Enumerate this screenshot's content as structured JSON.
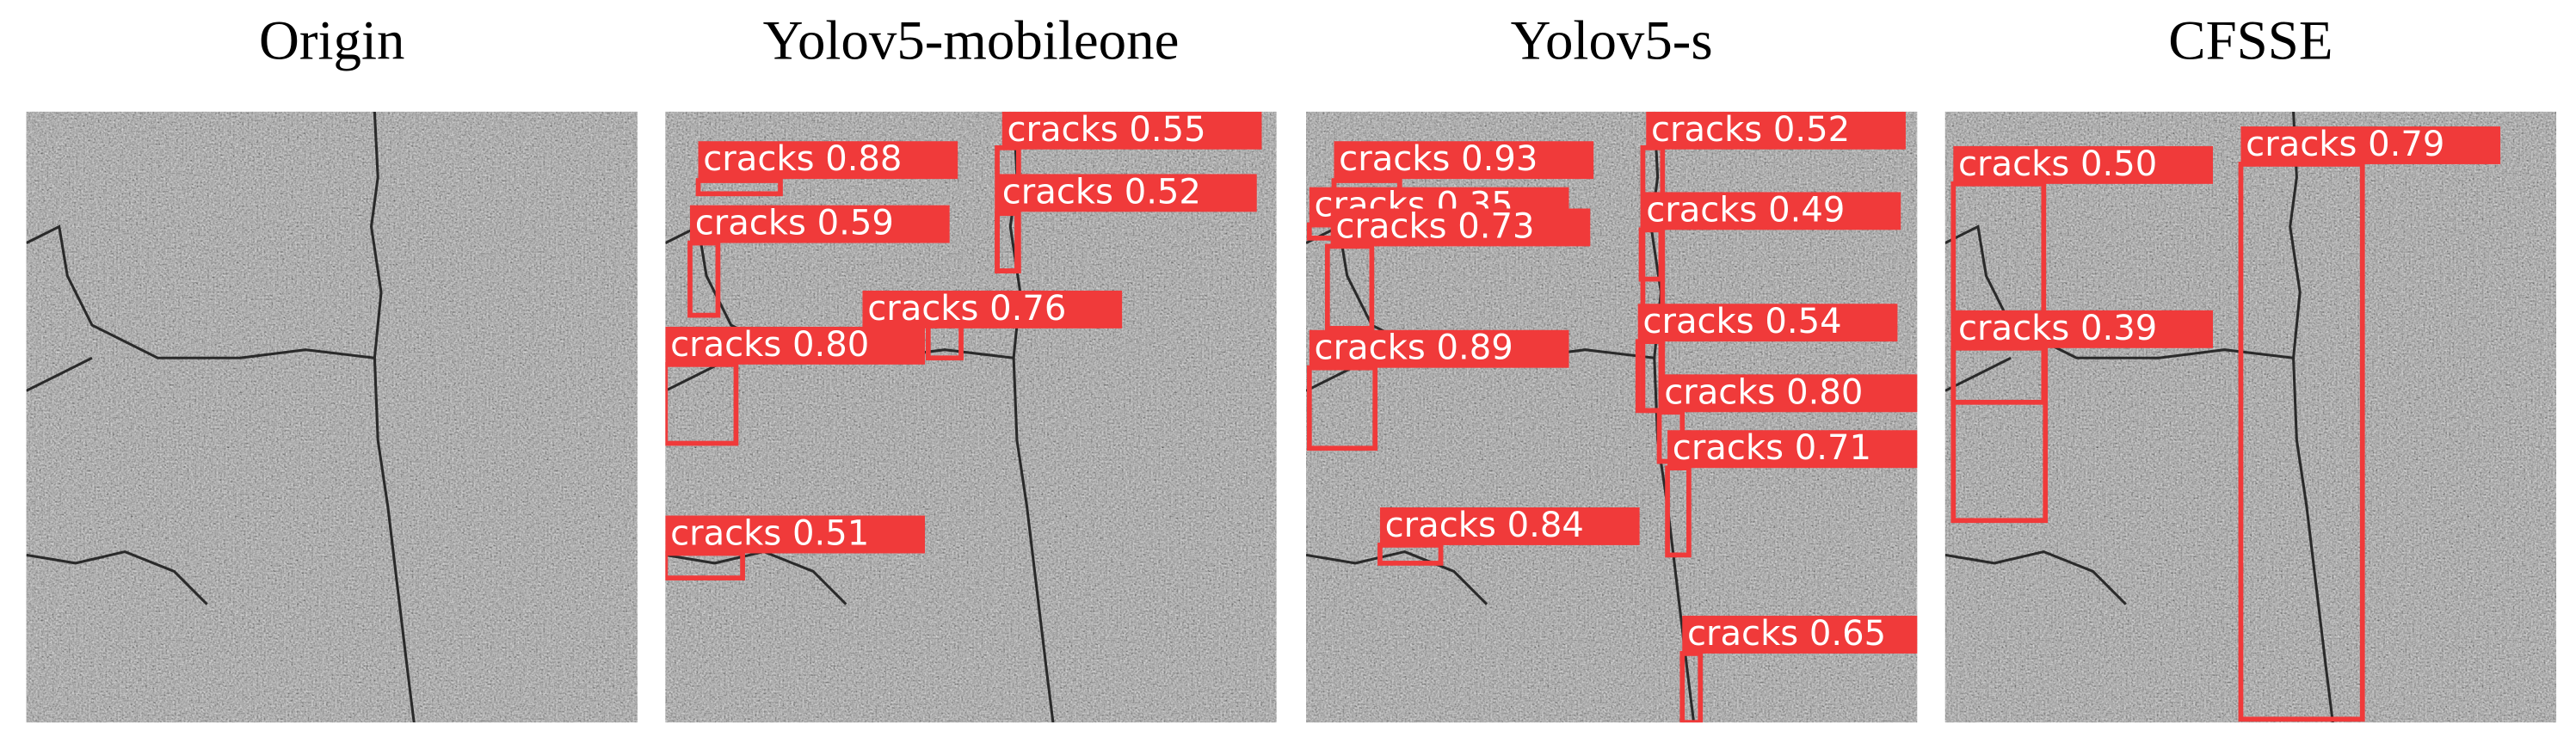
{
  "panels": [
    {
      "title": "Origin"
    },
    {
      "title": "Yolov5-mobileone",
      "detections": [
        "cracks 0.88",
        "cracks 0.55",
        "cracks 0.52",
        "cracks 0.59",
        "cracks 0.76",
        "cracks 0.80",
        "cracks 0.51"
      ]
    },
    {
      "title": "Yolov5-s",
      "detections": [
        "cracks 0.93",
        "cracks 0.52",
        "cracks 0.35",
        "cracks 0.73",
        "cracks 0.49",
        "cracks 0.89",
        "cracks 0.54",
        "cracks 0.80",
        "cracks 0.71",
        "cracks 0.84",
        "cracks 0.65"
      ]
    },
    {
      "title": "CFSSE",
      "detections": [
        "cracks 0.50",
        "cracks 0.79",
        "cracks 0.39"
      ]
    }
  ]
}
